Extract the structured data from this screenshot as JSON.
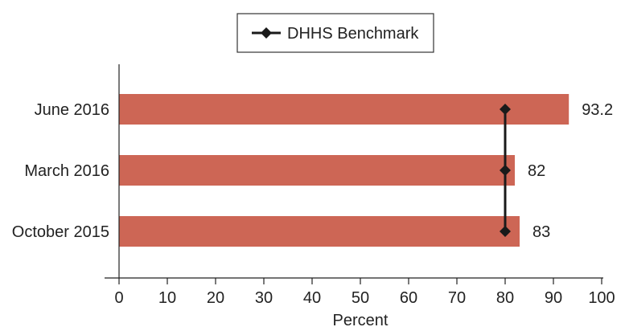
{
  "chart_data": {
    "type": "bar",
    "orientation": "horizontal",
    "categories": [
      "June 2016",
      "March 2016",
      "October 2015"
    ],
    "values": [
      93.2,
      82,
      83
    ],
    "value_labels": [
      "93.2",
      "82",
      "83"
    ],
    "benchmark": {
      "name": "DHHS Benchmark",
      "value": 80
    },
    "xlabel": "Percent",
    "xlim": [
      0,
      100
    ],
    "xticks": [
      0,
      10,
      20,
      30,
      40,
      50,
      60,
      70,
      80,
      90,
      100
    ],
    "grid": false,
    "legend_position": "top-center",
    "colors": {
      "bar": "#cd6655",
      "benchmark": "#1a1a1a",
      "axis": "#222222"
    }
  }
}
